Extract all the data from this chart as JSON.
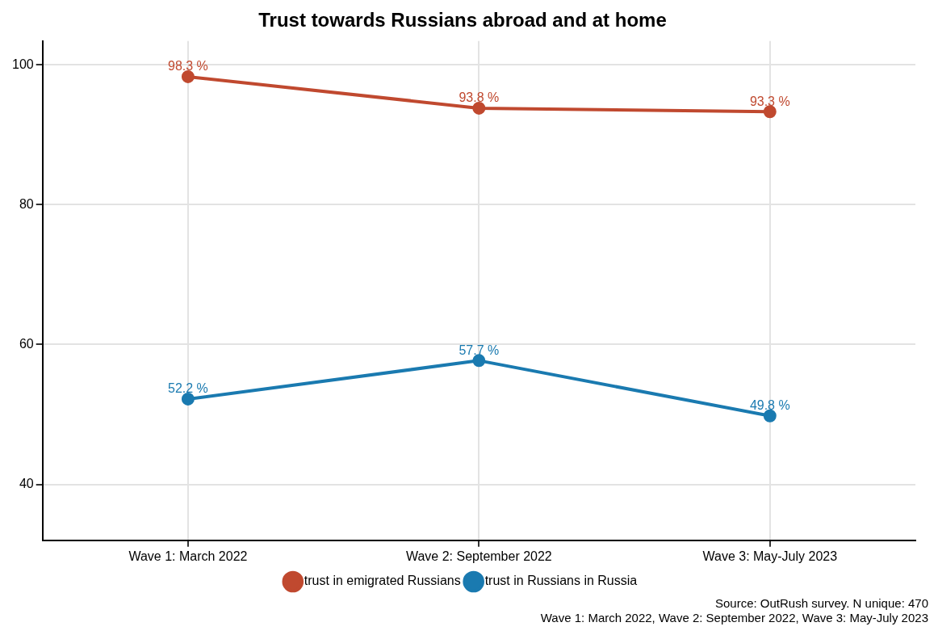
{
  "chart_data": {
    "type": "line",
    "title": "Trust towards Russians abroad and at home",
    "categories": [
      "Wave 1: March 2022",
      "Wave 2: September 2022",
      "Wave 3: May-July 2023"
    ],
    "series": [
      {
        "name": "trust in emigrated Russians",
        "color": "#c0492f",
        "values": [
          98.3,
          93.8,
          93.3
        ],
        "value_labels": [
          "98.3 %",
          "93.8 %",
          "93.3 %"
        ]
      },
      {
        "name": "trust in Russians in Russia",
        "color": "#1a7ab0",
        "values": [
          52.2,
          57.7,
          49.8
        ],
        "value_labels": [
          "52.2 %",
          "57.7 %",
          "49.8 %"
        ]
      }
    ],
    "ylim": [
      32,
      103.4
    ],
    "yticks": [
      40,
      60,
      80,
      100
    ],
    "grid": true,
    "legend": "bottom",
    "marker": "circle",
    "line_style": "solid",
    "annotations": [
      "Source: OutRush survey. N unique: 470",
      "Wave 1: March 2022, Wave 2: September 2022, Wave 3: May-July 2023"
    ]
  }
}
